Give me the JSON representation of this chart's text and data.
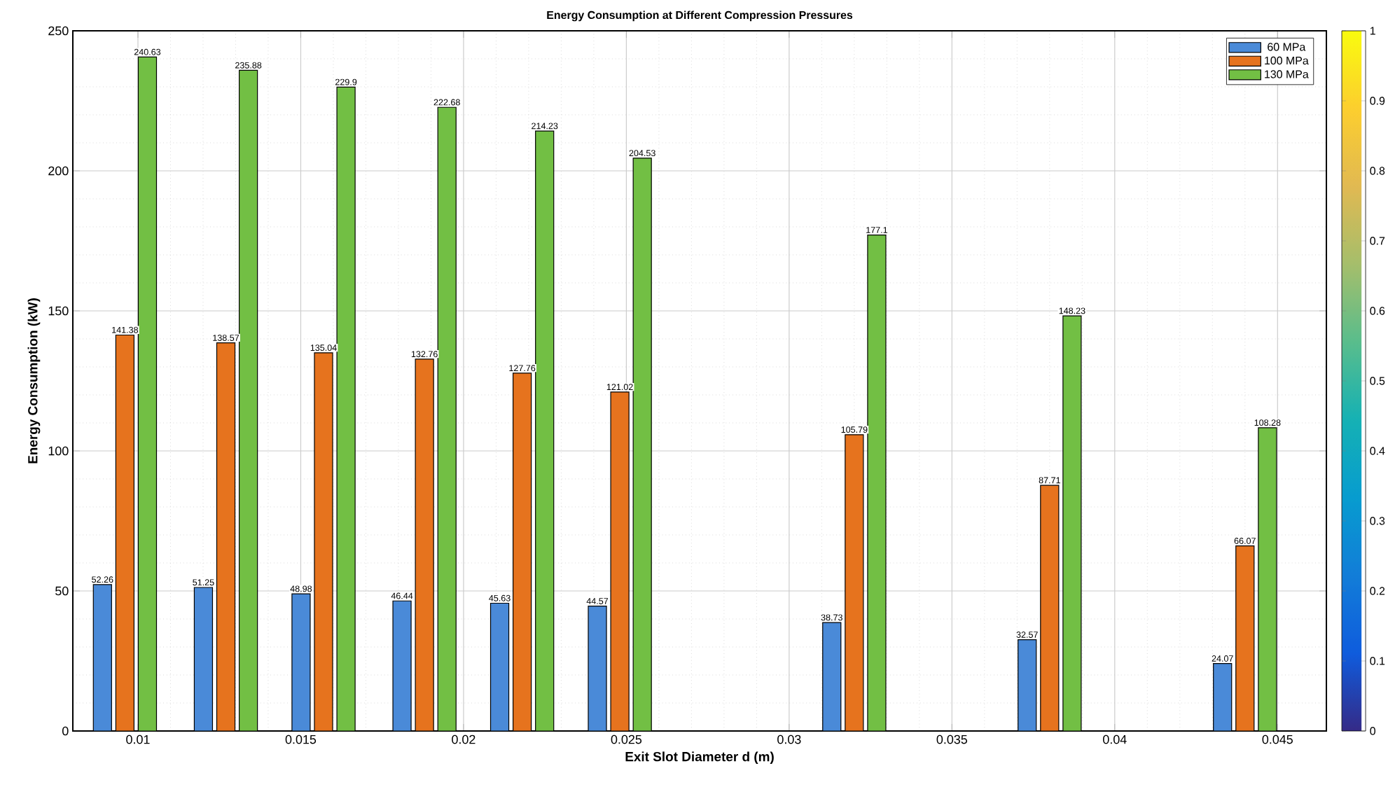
{
  "chart_data": {
    "type": "bar",
    "title": "Energy Consumption at Different Compression Pressures",
    "xlabel": "Exit Slot Diameter d (m)",
    "ylabel": "Energy Consumption (kW)",
    "x": [
      0.0096,
      0.0127,
      0.0157,
      0.0188,
      0.0218,
      0.0248,
      0.032,
      0.038,
      0.044
    ],
    "series": [
      {
        "name": "60 MPa",
        "color": "#4a8ad8",
        "values": [
          52.26,
          51.25,
          48.98,
          46.44,
          45.63,
          44.57,
          38.73,
          32.57,
          24.07
        ],
        "value_labels": [
          "52.26",
          "51.25",
          "48.98",
          "46.44",
          "45.63",
          "44.57",
          "38.73",
          "32.57",
          "24.07"
        ]
      },
      {
        "name": "100 MPa",
        "color": "#e6731e",
        "values": [
          141.38,
          138.57,
          135.04,
          132.76,
          127.76,
          121.02,
          105.79,
          87.71,
          66.07
        ],
        "value_labels": [
          "141.38",
          "138.57",
          "135.04",
          "132.76",
          "127.76",
          "121.02",
          "105.79",
          "87.71",
          "66.07"
        ]
      },
      {
        "name": "130 MPa",
        "color": "#72bf44",
        "values": [
          240.63,
          235.88,
          229.9,
          222.68,
          214.23,
          204.53,
          177.1,
          148.23,
          108.28
        ],
        "value_labels": [
          "240.63",
          "235.88",
          "229.9",
          "222.68",
          "214.23",
          "204.53",
          "177.1",
          "148.23",
          "108.28"
        ]
      }
    ],
    "xlim": [
      0.008,
      0.0465
    ],
    "xticks": [
      0.01,
      0.015,
      0.02,
      0.025,
      0.03,
      0.035,
      0.04,
      0.045
    ],
    "ylim": [
      0,
      250
    ],
    "yticks": [
      0,
      50,
      100,
      150,
      200,
      250
    ],
    "clim": [
      0,
      1
    ],
    "cticks": [
      0,
      0.1,
      0.2,
      0.3,
      0.4,
      0.5,
      0.6,
      0.7,
      0.8,
      0.9,
      1
    ],
    "grid": true,
    "legend": "top right"
  }
}
